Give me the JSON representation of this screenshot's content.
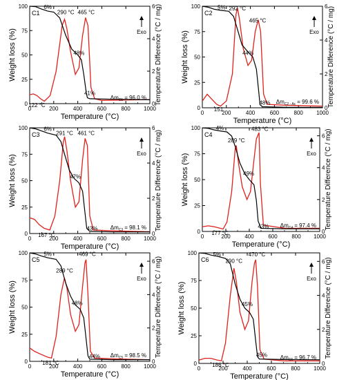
{
  "figure": {
    "colors": {
      "tga": "#000000",
      "dta": "#e0201b",
      "frame": "#000000"
    }
  },
  "chart_data": [
    {
      "type": "line",
      "panel": "C1",
      "xlabel": "Temperature (°C)",
      "ylabel": "Weight loss (%)",
      "y2label": "Temperature Difference (°C / mg)",
      "xlim": [
        0,
        1000
      ],
      "ylim": [
        0,
        100
      ],
      "y2lim": [
        0,
        6
      ],
      "xticks": [
        "0",
        "200",
        "400",
        "600",
        "800",
        "1000"
      ],
      "yticks": [
        "0",
        "25",
        "50",
        "75",
        "100"
      ],
      "y2ticks": [
        "0",
        "2",
        "4",
        "6"
      ],
      "exo_label": "Exo",
      "residue": {
        "prefix": "Δm",
        "sub": "C1",
        "value": "= 96.0 %"
      },
      "tga": [
        [
          0,
          100
        ],
        [
          50,
          99.5
        ],
        [
          100,
          97
        ],
        [
          150,
          95
        ],
        [
          200,
          94
        ],
        [
          250,
          88
        ],
        [
          300,
          70
        ],
        [
          350,
          56
        ],
        [
          400,
          50
        ],
        [
          430,
          45
        ],
        [
          450,
          30
        ],
        [
          470,
          12
        ],
        [
          480,
          6
        ],
        [
          500,
          5
        ],
        [
          700,
          4.5
        ],
        [
          1000,
          4
        ]
      ],
      "dta": [
        [
          0,
          0.55
        ],
        [
          30,
          0.6
        ],
        [
          60,
          0.5
        ],
        [
          90,
          0.3
        ],
        [
          122,
          0.15
        ],
        [
          170,
          0.5
        ],
        [
          220,
          2
        ],
        [
          270,
          4.8
        ],
        [
          290,
          5.2
        ],
        [
          310,
          4.6
        ],
        [
          340,
          3.2
        ],
        [
          380,
          1.8
        ],
        [
          410,
          2.2
        ],
        [
          440,
          4.2
        ],
        [
          465,
          5.3
        ],
        [
          485,
          4.8
        ],
        [
          510,
          1
        ],
        [
          540,
          0.3
        ],
        [
          600,
          0.2
        ],
        [
          1000,
          0.25
        ]
      ],
      "labels": [
        {
          "text": "6%",
          "x": 150,
          "y": 97
        },
        {
          "text": "290 °C",
          "x": 300,
          "y": 92
        },
        {
          "text": "465 °C",
          "x": 470,
          "y": 92
        },
        {
          "text": "48%",
          "x": 410,
          "y": 50
        },
        {
          "text": "41%",
          "x": 500,
          "y": 9
        },
        {
          "text": "122 °C",
          "x": 60,
          "y": -2
        }
      ]
    },
    {
      "type": "line",
      "panel": "C2",
      "xlabel": "Temperature (°C)",
      "ylabel": "Weight loss (%)",
      "y2label": "Temperature Difference (°C / mg)",
      "xlim": [
        0,
        1000
      ],
      "ylim": [
        0,
        100
      ],
      "y2lim": [
        0,
        6
      ],
      "xticks": [
        "0",
        "200",
        "400",
        "600",
        "800",
        "1000"
      ],
      "yticks": [
        "0",
        "25",
        "50",
        "75",
        "100"
      ],
      "y2ticks": [
        "0",
        "2",
        "4",
        "6"
      ],
      "exo_label": "Exo",
      "residue": {
        "prefix": "Δm",
        "sub": "C2 - Ac",
        "value": "= 99.6 %"
      },
      "tga": [
        [
          0,
          100
        ],
        [
          50,
          99
        ],
        [
          100,
          97
        ],
        [
          150,
          96
        ],
        [
          220,
          95
        ],
        [
          260,
          90
        ],
        [
          290,
          78
        ],
        [
          330,
          62
        ],
        [
          380,
          55
        ],
        [
          420,
          50
        ],
        [
          450,
          38
        ],
        [
          470,
          15
        ],
        [
          480,
          3
        ],
        [
          500,
          1
        ],
        [
          700,
          0.5
        ],
        [
          1000,
          0.4
        ]
      ],
      "dta": [
        [
          0,
          0.4
        ],
        [
          40,
          0.8
        ],
        [
          80,
          0.5
        ],
        [
          120,
          0.2
        ],
        [
          151,
          0.1
        ],
        [
          200,
          0.4
        ],
        [
          250,
          2
        ],
        [
          280,
          5.5
        ],
        [
          292,
          5.9
        ],
        [
          310,
          5.2
        ],
        [
          340,
          3.5
        ],
        [
          380,
          2.5
        ],
        [
          410,
          2.8
        ],
        [
          440,
          4.5
        ],
        [
          465,
          5.2
        ],
        [
          485,
          4.5
        ],
        [
          510,
          0.8
        ],
        [
          540,
          0.2
        ],
        [
          700,
          0.15
        ],
        [
          1000,
          0.1
        ]
      ],
      "labels": [
        {
          "text": "5%",
          "x": 160,
          "y": 97
        },
        {
          "text": "292 °C",
          "x": 292,
          "y": 96
        },
        {
          "text": "465 °C",
          "x": 460,
          "y": 84
        },
        {
          "text": "44%",
          "x": 380,
          "y": 52
        },
        {
          "text": "48%",
          "x": 520,
          "y": 3
        },
        {
          "text": "151",
          "x": 135,
          "y": -6
        }
      ]
    },
    {
      "type": "line",
      "panel": "C3",
      "xlabel": "Temperature (°C)",
      "ylabel": "Weight loss (%)",
      "y2label": "Temperature Difference (°C / mg)",
      "xlim": [
        0,
        1000
      ],
      "ylim": [
        0,
        100
      ],
      "y2lim": [
        0,
        6
      ],
      "xticks": [
        "0",
        "200",
        "400",
        "600",
        "800",
        "1000"
      ],
      "yticks": [
        "0",
        "25",
        "50",
        "75",
        "100"
      ],
      "y2ticks": [
        "0",
        "2",
        "4",
        "6"
      ],
      "exo_label": "Exo",
      "residue": {
        "prefix": "Δm",
        "sub": "C3",
        "value": "= 98.1 %"
      },
      "tga": [
        [
          0,
          100
        ],
        [
          50,
          99
        ],
        [
          100,
          97
        ],
        [
          150,
          95
        ],
        [
          220,
          93
        ],
        [
          260,
          87
        ],
        [
          290,
          75
        ],
        [
          330,
          60
        ],
        [
          370,
          52
        ],
        [
          410,
          48
        ],
        [
          440,
          40
        ],
        [
          460,
          20
        ],
        [
          475,
          5
        ],
        [
          500,
          2
        ],
        [
          700,
          1.5
        ],
        [
          1000,
          1.5
        ]
      ],
      "dta": [
        [
          0,
          0.9
        ],
        [
          40,
          0.8
        ],
        [
          80,
          0.5
        ],
        [
          120,
          0.3
        ],
        [
          167,
          0.2
        ],
        [
          210,
          1
        ],
        [
          250,
          3
        ],
        [
          280,
          5.2
        ],
        [
          291,
          5.5
        ],
        [
          310,
          4.7
        ],
        [
          340,
          3
        ],
        [
          380,
          1.5
        ],
        [
          410,
          1.8
        ],
        [
          440,
          4.2
        ],
        [
          461,
          5.4
        ],
        [
          480,
          5
        ],
        [
          500,
          1
        ],
        [
          530,
          0.2
        ],
        [
          700,
          0.15
        ],
        [
          1000,
          0.1
        ]
      ],
      "labels": [
        {
          "text": "6%",
          "x": 150,
          "y": 97
        },
        {
          "text": "291 °C",
          "x": 290,
          "y": 93
        },
        {
          "text": "461 °C",
          "x": 470,
          "y": 93
        },
        {
          "text": "47%",
          "x": 380,
          "y": 52
        },
        {
          "text": "43%",
          "x": 520,
          "y": 3
        },
        {
          "text": "167 °C",
          "x": 140,
          "y": -2
        }
      ]
    },
    {
      "type": "line",
      "panel": "C4",
      "xlabel": "Temperature (°C)",
      "ylabel": "Weight loss (%)",
      "y2label": "Temperature Difference (°C / mg)",
      "xlim": [
        0,
        1000
      ],
      "ylim": [
        0,
        100
      ],
      "y2lim": [
        0,
        6.5
      ],
      "xticks": [
        "0",
        "200",
        "400",
        "600",
        "800",
        "1000"
      ],
      "yticks": [
        "0",
        "25",
        "50",
        "75",
        "100"
      ],
      "y2ticks": [
        "0",
        "2",
        "4",
        "6"
      ],
      "exo_label": "Exo",
      "residue": {
        "prefix": "Δm",
        "sub": "C4",
        "value": "= 97.4 %"
      },
      "tga": [
        [
          0,
          100
        ],
        [
          50,
          99.5
        ],
        [
          100,
          98
        ],
        [
          150,
          97
        ],
        [
          210,
          96
        ],
        [
          250,
          92
        ],
        [
          280,
          82
        ],
        [
          320,
          66
        ],
        [
          360,
          56
        ],
        [
          400,
          50
        ],
        [
          440,
          45
        ],
        [
          460,
          30
        ],
        [
          475,
          10
        ],
        [
          500,
          3
        ],
        [
          700,
          2.6
        ],
        [
          1000,
          2.6
        ]
      ],
      "dta": [
        [
          0,
          0.3
        ],
        [
          50,
          0.35
        ],
        [
          100,
          0.3
        ],
        [
          177,
          0.15
        ],
        [
          210,
          0.6
        ],
        [
          250,
          2.5
        ],
        [
          280,
          5.2
        ],
        [
          289,
          5.4
        ],
        [
          310,
          4.2
        ],
        [
          340,
          2.8
        ],
        [
          380,
          2
        ],
        [
          410,
          2.5
        ],
        [
          440,
          4.5
        ],
        [
          460,
          5.8
        ],
        [
          483,
          6.2
        ],
        [
          495,
          3
        ],
        [
          520,
          0.4
        ],
        [
          700,
          0.2
        ],
        [
          1000,
          0.2
        ]
      ],
      "labels": [
        {
          "text": "4%",
          "x": 150,
          "y": 98
        },
        {
          "text": "483 °C",
          "x": 490,
          "y": 97
        },
        {
          "text": "289 °C",
          "x": 290,
          "y": 86
        },
        {
          "text": "49%",
          "x": 395,
          "y": 54
        },
        {
          "text": "43%",
          "x": 520,
          "y": 3
        },
        {
          "text": "177 °C",
          "x": 150,
          "y": -2
        }
      ]
    },
    {
      "type": "line",
      "panel": "C5",
      "xlabel": "Temperature (°C)",
      "ylabel": "Weight loss (%)",
      "y2label": "Temperature Difference (°C / mg)",
      "xlim": [
        0,
        1000
      ],
      "ylim": [
        0,
        100
      ],
      "y2lim": [
        0,
        6.5
      ],
      "xticks": [
        "0",
        "200",
        "400",
        "600",
        "800",
        "1000"
      ],
      "yticks": [
        "0",
        "25",
        "50",
        "75",
        "100"
      ],
      "y2ticks": [
        "0",
        "2",
        "4",
        "6"
      ],
      "exo_label": "Exo",
      "residue": {
        "prefix": "Δm",
        "sub": "C5",
        "value": "= 98.5 %"
      },
      "tga": [
        [
          0,
          100
        ],
        [
          50,
          99
        ],
        [
          100,
          97
        ],
        [
          150,
          95.5
        ],
        [
          220,
          94
        ],
        [
          260,
          88
        ],
        [
          300,
          72
        ],
        [
          340,
          60
        ],
        [
          380,
          52
        ],
        [
          420,
          48
        ],
        [
          450,
          40
        ],
        [
          470,
          20
        ],
        [
          485,
          5
        ],
        [
          500,
          2
        ],
        [
          700,
          1.5
        ],
        [
          1000,
          1.5
        ]
      ],
      "dta": [
        [
          0,
          0.8
        ],
        [
          40,
          0.6
        ],
        [
          100,
          0.4
        ],
        [
          150,
          0.25
        ],
        [
          181,
          0.2
        ],
        [
          220,
          1.5
        ],
        [
          260,
          4
        ],
        [
          289,
          5
        ],
        [
          310,
          4.4
        ],
        [
          340,
          2.8
        ],
        [
          380,
          1.8
        ],
        [
          410,
          2.2
        ],
        [
          440,
          4.5
        ],
        [
          460,
          5.9
        ],
        [
          469,
          6.1
        ],
        [
          485,
          4
        ],
        [
          505,
          0.6
        ],
        [
          540,
          0.2
        ],
        [
          700,
          0.15
        ],
        [
          1000,
          0.1
        ]
      ],
      "labels": [
        {
          "text": "5%",
          "x": 150,
          "y": 97
        },
        {
          "text": "469 °C",
          "x": 480,
          "y": 97
        },
        {
          "text": "289 °C",
          "x": 290,
          "y": 82
        },
        {
          "text": "48%",
          "x": 395,
          "y": 52
        },
        {
          "text": "44%",
          "x": 540,
          "y": 3
        },
        {
          "text": "181 °C",
          "x": 175,
          "y": -2
        }
      ]
    },
    {
      "type": "line",
      "panel": "C6",
      "xlabel": "Temperature (°C)",
      "ylabel": "Weight loss (%)",
      "y2label": "Temperature Difference (°C / mg)",
      "xlim": [
        0,
        1000
      ],
      "ylim": [
        0,
        100
      ],
      "y2lim": [
        0,
        6.5
      ],
      "xticks": [
        "0",
        "200",
        "400",
        "600",
        "800",
        "1000"
      ],
      "yticks": [
        "0",
        "25",
        "50",
        "75",
        "100"
      ],
      "y2ticks": [
        "0",
        "2",
        "4",
        "6"
      ],
      "exo_label": "Exo",
      "residue": {
        "prefix": "Δm",
        "sub": "C6",
        "value": "= 96.7 %"
      },
      "tga": [
        [
          0,
          100
        ],
        [
          50,
          99.5
        ],
        [
          100,
          98
        ],
        [
          150,
          97
        ],
        [
          220,
          95
        ],
        [
          260,
          90
        ],
        [
          300,
          72
        ],
        [
          340,
          58
        ],
        [
          380,
          50
        ],
        [
          420,
          46
        ],
        [
          450,
          40
        ],
        [
          470,
          20
        ],
        [
          485,
          6
        ],
        [
          500,
          4
        ],
        [
          700,
          3.5
        ],
        [
          1000,
          3.3
        ]
      ],
      "dta": [
        [
          0,
          0.2
        ],
        [
          50,
          0.3
        ],
        [
          100,
          0.3
        ],
        [
          150,
          0.2
        ],
        [
          186,
          0.15
        ],
        [
          220,
          1.2
        ],
        [
          260,
          4
        ],
        [
          290,
          5.6
        ],
        [
          310,
          4.8
        ],
        [
          340,
          3
        ],
        [
          380,
          2
        ],
        [
          410,
          2.5
        ],
        [
          440,
          4.8
        ],
        [
          460,
          5.9
        ],
        [
          470,
          6.1
        ],
        [
          485,
          4.5
        ],
        [
          505,
          0.8
        ],
        [
          540,
          0.25
        ],
        [
          700,
          0.15
        ],
        [
          1000,
          0.15
        ]
      ],
      "labels": [
        {
          "text": "5%",
          "x": 150,
          "y": 97
        },
        {
          "text": "470 °C",
          "x": 480,
          "y": 97
        },
        {
          "text": "290 °C",
          "x": 290,
          "y": 91
        },
        {
          "text": "45%",
          "x": 400,
          "y": 52
        },
        {
          "text": "45%",
          "x": 520,
          "y": 6
        },
        {
          "text": "186 °C",
          "x": 180,
          "y": -2
        }
      ]
    }
  ]
}
